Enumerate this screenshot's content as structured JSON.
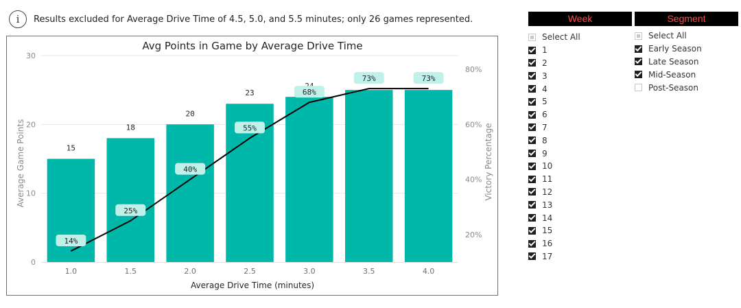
{
  "info": {
    "icon": "info-icon",
    "text": "Results excluded for Average Drive Time of 4.5, 5.0, and 5.5 minutes; only 26 games represented."
  },
  "colors": {
    "bar": "#00b8aa",
    "line": "#000000",
    "pct_label_bg": "#bff0ea",
    "slicer_header_bg": "#000000",
    "slicer_header_text": "#ff4b4b"
  },
  "chart_data": {
    "type": "bar",
    "title": "Avg Points in Game by Average Drive Time",
    "xlabel": "Average Drive Time (minutes)",
    "ylabel": "Average Game Points",
    "y2label": "Victory Percentage",
    "categories": [
      "1.0",
      "1.5",
      "2.0",
      "2.5",
      "3.0",
      "3.5",
      "4.0"
    ],
    "ylim": [
      0,
      30
    ],
    "yticks": [
      "0",
      "10",
      "20",
      "30"
    ],
    "y2lim": [
      0.1,
      0.85
    ],
    "y2ticks": [
      "20%",
      "40%",
      "60%",
      "80%"
    ],
    "grid": true,
    "series": [
      {
        "type": "bar",
        "values": [
          15,
          18,
          20,
          23,
          24,
          25,
          25
        ],
        "labels": [
          "15",
          "18",
          "20",
          "23",
          "24",
          "25",
          "25"
        ]
      },
      {
        "type": "line",
        "axis": "secondary",
        "values": [
          0.14,
          0.25,
          0.4,
          0.55,
          0.68,
          0.73,
          0.73
        ],
        "labels": [
          "14%",
          "25%",
          "40%",
          "55%",
          "68%",
          "73%",
          "73%"
        ]
      }
    ]
  },
  "week_slicer": {
    "title": "Week",
    "items": [
      {
        "label": "Select All",
        "state": "partial"
      },
      {
        "label": "1",
        "state": "checked"
      },
      {
        "label": "2",
        "state": "checked"
      },
      {
        "label": "3",
        "state": "checked"
      },
      {
        "label": "4",
        "state": "checked"
      },
      {
        "label": "5",
        "state": "checked"
      },
      {
        "label": "6",
        "state": "checked"
      },
      {
        "label": "7",
        "state": "checked"
      },
      {
        "label": "8",
        "state": "checked"
      },
      {
        "label": "9",
        "state": "checked"
      },
      {
        "label": "10",
        "state": "checked"
      },
      {
        "label": "11",
        "state": "checked"
      },
      {
        "label": "12",
        "state": "checked"
      },
      {
        "label": "13",
        "state": "checked"
      },
      {
        "label": "14",
        "state": "checked"
      },
      {
        "label": "15",
        "state": "checked"
      },
      {
        "label": "16",
        "state": "checked"
      },
      {
        "label": "17",
        "state": "checked"
      }
    ]
  },
  "segment_slicer": {
    "title": "Segment",
    "items": [
      {
        "label": "Select All",
        "state": "partial"
      },
      {
        "label": "Early Season",
        "state": "checked"
      },
      {
        "label": "Late Season",
        "state": "checked"
      },
      {
        "label": "Mid-Season",
        "state": "checked"
      },
      {
        "label": "Post-Season",
        "state": "unchecked"
      }
    ]
  }
}
